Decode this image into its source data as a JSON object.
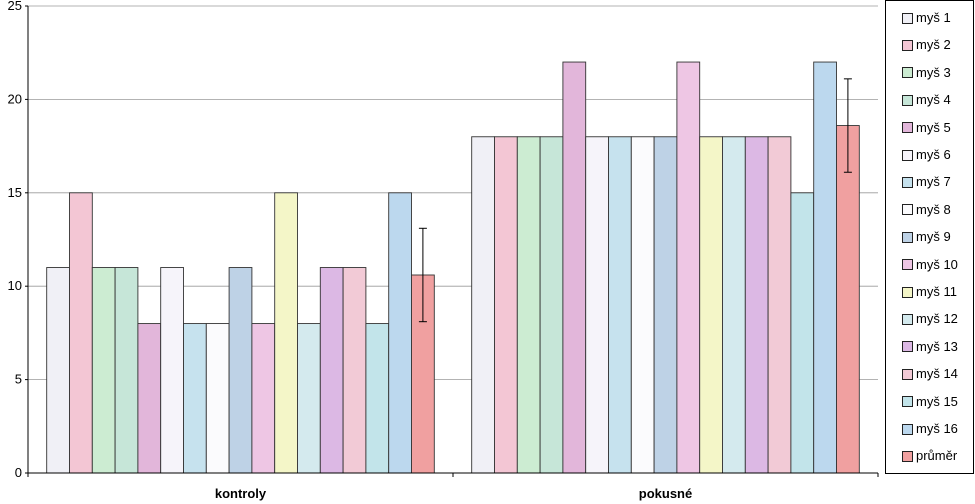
{
  "chart_data": {
    "type": "bar",
    "title": "",
    "xlabel": "",
    "ylabel": "",
    "ylim": [
      0,
      25
    ],
    "yticks": [
      0,
      5,
      10,
      15,
      20,
      25
    ],
    "grid": true,
    "legend_position": "right",
    "categories": [
      "kontroly",
      "pokusné"
    ],
    "series": [
      {
        "name": "myš 1",
        "values": [
          11,
          18
        ],
        "color": "#f0f0f6"
      },
      {
        "name": "myš 2",
        "values": [
          15,
          18
        ],
        "color": "#f3c6d4"
      },
      {
        "name": "myš 3",
        "values": [
          11,
          18
        ],
        "color": "#ccecd2"
      },
      {
        "name": "myš 4",
        "values": [
          11,
          18
        ],
        "color": "#c6e6d8"
      },
      {
        "name": "myš 5",
        "values": [
          8,
          22
        ],
        "color": "#e2b6da"
      },
      {
        "name": "myš 6",
        "values": [
          11,
          18
        ],
        "color": "#f6f4fa"
      },
      {
        "name": "myš 7",
        "values": [
          8,
          18
        ],
        "color": "#c6e2ee"
      },
      {
        "name": "myš 8",
        "values": [
          8,
          18
        ],
        "color": "#fbfbfd"
      },
      {
        "name": "myš 9",
        "values": [
          11,
          18
        ],
        "color": "#bed2e6"
      },
      {
        "name": "myš 10",
        "values": [
          8,
          22
        ],
        "color": "#eec6e4"
      },
      {
        "name": "myš 11",
        "values": [
          15,
          18
        ],
        "color": "#f4f6c8"
      },
      {
        "name": "myš 12",
        "values": [
          8,
          18
        ],
        "color": "#d4eaee"
      },
      {
        "name": "myš 13",
        "values": [
          11,
          18
        ],
        "color": "#dcb8e4"
      },
      {
        "name": "myš 14",
        "values": [
          11,
          18
        ],
        "color": "#f2cad6"
      },
      {
        "name": "myš 15",
        "values": [
          8,
          15
        ],
        "color": "#c2e4ea"
      },
      {
        "name": "myš 16",
        "values": [
          15,
          22
        ],
        "color": "#bcd8ee"
      },
      {
        "name": "průměr",
        "values": [
          10.6,
          18.6
        ],
        "color": "#f0a0a0",
        "error": [
          [
            8.1,
            13.1
          ],
          [
            16.1,
            21.1
          ]
        ]
      }
    ]
  }
}
